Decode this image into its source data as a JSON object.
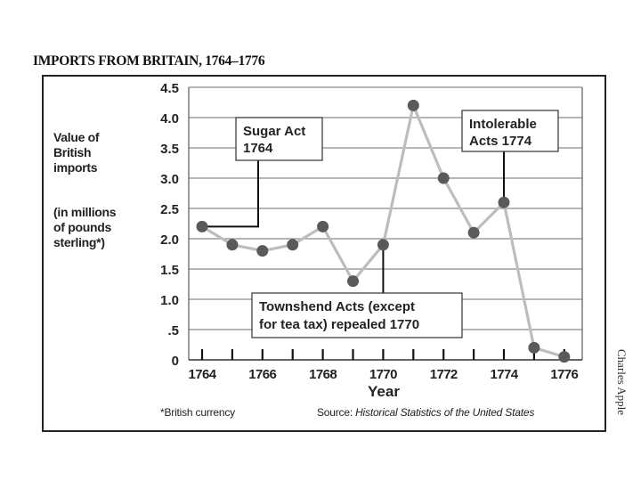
{
  "chart_data": {
    "type": "line",
    "title": "IMPORTS FROM BRITAIN, 1764–1776",
    "xlabel": "Year",
    "ylabel_lines": [
      "Value of",
      "British",
      "imports"
    ],
    "ylabel_sub_lines": [
      "(in millions",
      "of pounds",
      "sterling*)"
    ],
    "x": [
      1764,
      1765,
      1766,
      1767,
      1768,
      1769,
      1770,
      1771,
      1772,
      1773,
      1774,
      1775,
      1776
    ],
    "series": [
      {
        "name": "Imports from Britain",
        "values": [
          2.2,
          1.9,
          1.8,
          1.9,
          2.2,
          1.3,
          1.9,
          4.2,
          3.0,
          2.1,
          2.6,
          0.2,
          0.05
        ]
      }
    ],
    "xticks": [
      "1764",
      "1766",
      "1768",
      "1770",
      "1772",
      "1774",
      "1776"
    ],
    "yticks": [
      {
        "value": 0,
        "label": "0"
      },
      {
        "value": 0.5,
        "label": ".5"
      },
      {
        "value": 1.0,
        "label": "1.0"
      },
      {
        "value": 1.5,
        "label": "1.5"
      },
      {
        "value": 2.0,
        "label": "2.0"
      },
      {
        "value": 2.5,
        "label": "2.5"
      },
      {
        "value": 3.0,
        "label": "3.0"
      },
      {
        "value": 3.5,
        "label": "3.5"
      },
      {
        "value": 4.0,
        "label": "4.0"
      },
      {
        "value": 4.5,
        "label": "4.5"
      }
    ],
    "xlim": [
      1763.55,
      1776.6
    ],
    "ylim": [
      0,
      4.5
    ],
    "grid": true,
    "annotations": [
      {
        "lines": [
          "Sugar Act",
          "1764"
        ],
        "year": 1764,
        "value": 2.2
      },
      {
        "lines": [
          "Intolerable",
          "Acts 1774"
        ],
        "year": 1774,
        "value": 2.6
      },
      {
        "lines": [
          "Townshend Acts (except",
          "for tea tax) repealed 1770"
        ],
        "year": 1770,
        "value": 1.9
      }
    ],
    "footnote": "*British currency",
    "source_prefix": "Source: ",
    "source_title": "Historical Statistics of the United States",
    "colors": {
      "line": "#bdbdbd",
      "marker": "#5a5a5a",
      "grid": "#8a8a8a",
      "text": "#222222"
    }
  },
  "credit": "Charles Apple"
}
